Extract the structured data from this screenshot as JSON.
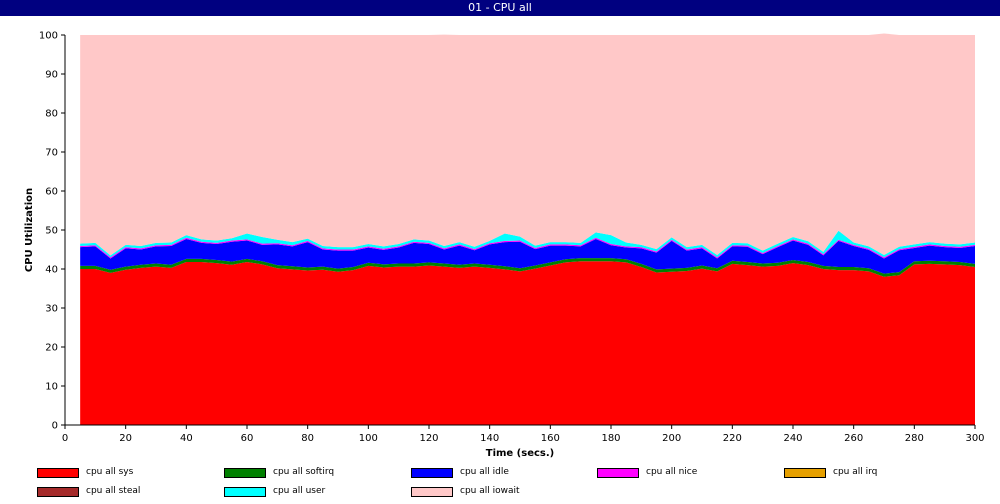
{
  "window": {
    "title": "01 - CPU all"
  },
  "chart_data": {
    "type": "area",
    "stacked": true,
    "title": "01 - CPU all",
    "xlabel": "Time (secs.)",
    "ylabel": "CPU Utilization",
    "xlim": [
      0,
      300
    ],
    "ylim": [
      0,
      100
    ],
    "x_ticks": [
      0,
      20,
      40,
      60,
      80,
      100,
      120,
      140,
      160,
      180,
      200,
      220,
      240,
      260,
      280,
      300
    ],
    "y_ticks": [
      0,
      10,
      20,
      30,
      40,
      50,
      60,
      70,
      80,
      90,
      100
    ],
    "grid": false,
    "legend_position": "bottom",
    "x": [
      5,
      10,
      15,
      20,
      25,
      30,
      35,
      40,
      45,
      50,
      55,
      60,
      65,
      70,
      75,
      80,
      85,
      90,
      95,
      100,
      105,
      110,
      115,
      120,
      125,
      130,
      135,
      140,
      145,
      150,
      155,
      160,
      165,
      170,
      175,
      180,
      185,
      190,
      195,
      200,
      205,
      210,
      215,
      220,
      225,
      230,
      235,
      240,
      245,
      250,
      255,
      260,
      265,
      270,
      275,
      280,
      285,
      290,
      295,
      300
    ],
    "series": [
      {
        "name": "cpu all sys",
        "color": "#ff0000",
        "values": [
          40.0,
          40.0,
          39.0,
          39.8,
          40.3,
          40.6,
          40.3,
          41.8,
          41.8,
          41.5,
          41.1,
          41.8,
          41.2,
          40.2,
          39.9,
          39.6,
          39.8,
          39.3,
          39.7,
          40.8,
          40.4,
          40.6,
          40.6,
          40.9,
          40.6,
          40.3,
          40.6,
          40.3,
          39.9,
          39.4,
          40.1,
          40.9,
          41.7,
          42.0,
          42.0,
          42.0,
          41.7,
          40.5,
          39.1,
          39.3,
          39.5,
          40.1,
          39.4,
          41.3,
          41.0,
          40.6,
          40.8,
          41.5,
          41.0,
          40.0,
          39.7,
          39.7,
          39.4,
          38.0,
          38.4,
          41.2,
          41.3,
          41.2,
          41.0,
          40.5
        ]
      },
      {
        "name": "cpu all softirq",
        "color": "#008000",
        "values": [
          0.8,
          0.8,
          0.8,
          0.8,
          0.8,
          0.8,
          0.8,
          0.8,
          0.8,
          0.8,
          0.8,
          0.8,
          0.8,
          0.8,
          0.8,
          0.8,
          0.8,
          0.8,
          0.8,
          0.8,
          0.8,
          0.8,
          0.8,
          0.8,
          0.8,
          0.8,
          0.8,
          0.8,
          0.8,
          0.8,
          0.8,
          0.8,
          0.8,
          0.8,
          0.8,
          0.8,
          0.8,
          0.8,
          0.8,
          0.8,
          0.8,
          0.8,
          0.8,
          0.8,
          0.8,
          0.8,
          0.8,
          0.8,
          0.8,
          0.8,
          0.8,
          0.8,
          0.8,
          0.8,
          0.8,
          0.8,
          0.8,
          0.8,
          0.8,
          0.8
        ]
      },
      {
        "name": "cpu all idle",
        "color": "#0000ff",
        "values": [
          4.8,
          5.0,
          2.9,
          4.7,
          3.9,
          4.4,
          4.8,
          5.1,
          4.1,
          4.1,
          5.1,
          4.7,
          4.2,
          5.3,
          5.1,
          6.5,
          4.4,
          4.6,
          4.2,
          3.9,
          3.7,
          4.1,
          5.3,
          4.7,
          3.6,
          4.9,
          3.4,
          5.2,
          6.2,
          6.8,
          4.2,
          4.3,
          3.5,
          3.0,
          4.9,
          3.3,
          3.0,
          4.0,
          4.3,
          7.1,
          4.4,
          4.4,
          2.5,
          3.7,
          3.9,
          2.4,
          4.0,
          5.0,
          4.4,
          2.7,
          6.7,
          5.4,
          4.7,
          3.9,
          5.6,
          3.4,
          3.9,
          3.6,
          3.6,
          4.6
        ]
      },
      {
        "name": "cpu all nice",
        "color": "#ff00ff",
        "values": [
          0.3,
          0.3,
          0.3,
          0.3,
          0.3,
          0.3,
          0.3,
          0.3,
          0.3,
          0.3,
          0.3,
          0.3,
          0.3,
          0.3,
          0.3,
          0.3,
          0.3,
          0.3,
          0.3,
          0.3,
          0.3,
          0.3,
          0.3,
          0.3,
          0.3,
          0.3,
          0.3,
          0.3,
          0.3,
          0.3,
          0.3,
          0.3,
          0.3,
          0.3,
          0.3,
          0.3,
          0.3,
          0.3,
          0.3,
          0.3,
          0.3,
          0.3,
          0.3,
          0.3,
          0.3,
          0.3,
          0.3,
          0.3,
          0.3,
          0.3,
          0.3,
          0.3,
          0.3,
          0.3,
          0.3,
          0.3,
          0.3,
          0.3,
          0.3,
          0.3
        ]
      },
      {
        "name": "cpu all irq",
        "color": "#e6a000",
        "values": [
          0,
          0,
          0,
          0,
          0,
          0,
          0,
          0,
          0,
          0,
          0,
          0,
          0,
          0,
          0,
          0,
          0,
          0,
          0,
          0,
          0,
          0,
          0,
          0,
          0,
          0,
          0,
          0,
          0,
          0,
          0,
          0,
          0,
          0,
          0,
          0,
          0,
          0,
          0,
          0,
          0,
          0,
          0,
          0,
          0,
          0,
          0,
          0,
          0,
          0,
          0,
          0,
          0,
          0,
          0,
          0,
          0,
          0,
          0,
          0
        ]
      },
      {
        "name": "cpu all steal",
        "color": "#a52a2a",
        "values": [
          0,
          0,
          0,
          0,
          0,
          0,
          0,
          0,
          0,
          0,
          0,
          0,
          0,
          0,
          0,
          0,
          0,
          0,
          0,
          0,
          0,
          0,
          0,
          0,
          0,
          0,
          0,
          0,
          0,
          0,
          0,
          0,
          0,
          0,
          0,
          0,
          0,
          0,
          0,
          0,
          0,
          0,
          0,
          0,
          0,
          0,
          0,
          0,
          0,
          0,
          0,
          0,
          0,
          0,
          0,
          0,
          0,
          0,
          0,
          0
        ]
      },
      {
        "name": "cpu all user",
        "color": "#00ffff",
        "values": [
          0.6,
          0.6,
          0.5,
          0.6,
          0.6,
          0.6,
          0.6,
          0.7,
          0.6,
          0.6,
          0.6,
          1.5,
          1.7,
          0.9,
          0.8,
          0.6,
          0.6,
          0.6,
          0.6,
          0.6,
          0.6,
          0.6,
          0.6,
          0.6,
          0.6,
          0.6,
          0.6,
          0.6,
          1.9,
          1.0,
          0.6,
          0.6,
          0.6,
          0.6,
          1.4,
          2.3,
          1.0,
          0.6,
          0.6,
          0.6,
          0.6,
          0.6,
          0.6,
          0.6,
          0.6,
          0.6,
          0.6,
          0.6,
          0.6,
          0.6,
          2.3,
          0.6,
          0.6,
          0.6,
          0.6,
          0.6,
          0.6,
          0.6,
          0.6,
          0.6
        ]
      },
      {
        "name": "cpu all iowait",
        "color": "#ffc8c8",
        "values": [
          53.5,
          53.3,
          56.5,
          53.8,
          54.1,
          53.3,
          53.2,
          51.3,
          52.4,
          52.7,
          52.1,
          50.9,
          51.8,
          52.5,
          53.1,
          52.2,
          54.1,
          54.4,
          54.4,
          53.6,
          54.2,
          53.6,
          52.4,
          52.7,
          54.2,
          53.1,
          54.3,
          52.8,
          50.9,
          51.7,
          54.0,
          53.1,
          53.1,
          53.3,
          50.6,
          51.3,
          53.2,
          53.8,
          54.9,
          51.9,
          54.4,
          53.8,
          56.4,
          53.3,
          53.4,
          55.3,
          53.5,
          51.8,
          52.9,
          55.6,
          50.2,
          53.2,
          54.2,
          56.8,
          54.3,
          53.7,
          53.1,
          53.5,
          53.7,
          53.2
        ]
      }
    ]
  }
}
